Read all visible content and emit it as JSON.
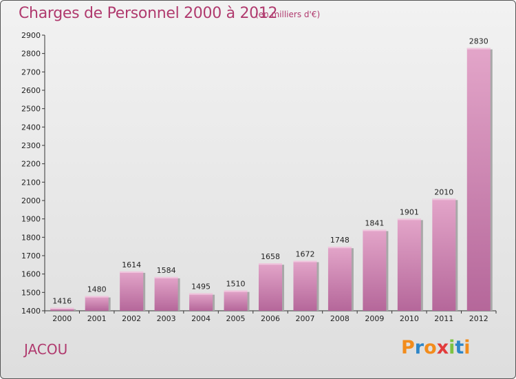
{
  "chart_data": {
    "type": "bar",
    "title": "Charges de Personnel 2000 à 2012",
    "subtitle": "(en milliers d'€)",
    "categories": [
      "2000",
      "2001",
      "2002",
      "2003",
      "2004",
      "2005",
      "2006",
      "2007",
      "2008",
      "2009",
      "2010",
      "2011",
      "2012"
    ],
    "values": [
      1416,
      1480,
      1614,
      1584,
      1495,
      1510,
      1658,
      1672,
      1748,
      1841,
      1901,
      2010,
      2830
    ],
    "ylim": [
      1400,
      2900
    ],
    "yticks": [
      1400,
      1500,
      1600,
      1700,
      1800,
      1900,
      2000,
      2100,
      2200,
      2300,
      2400,
      2500,
      2600,
      2700,
      2800,
      2900
    ],
    "grid": false,
    "bar_color": "#d98fb8",
    "bar_shadow_color": "#a3a3a3"
  },
  "footer": {
    "commune": "JACOU",
    "logo_text": "Proxiti"
  },
  "colors": {
    "title": "#b03a6e",
    "logo": [
      "#f28c1c",
      "#2e86c8",
      "#f28c1c",
      "#e23b3b",
      "#7cc242",
      "#2e86c8",
      "#f28c1c"
    ]
  }
}
